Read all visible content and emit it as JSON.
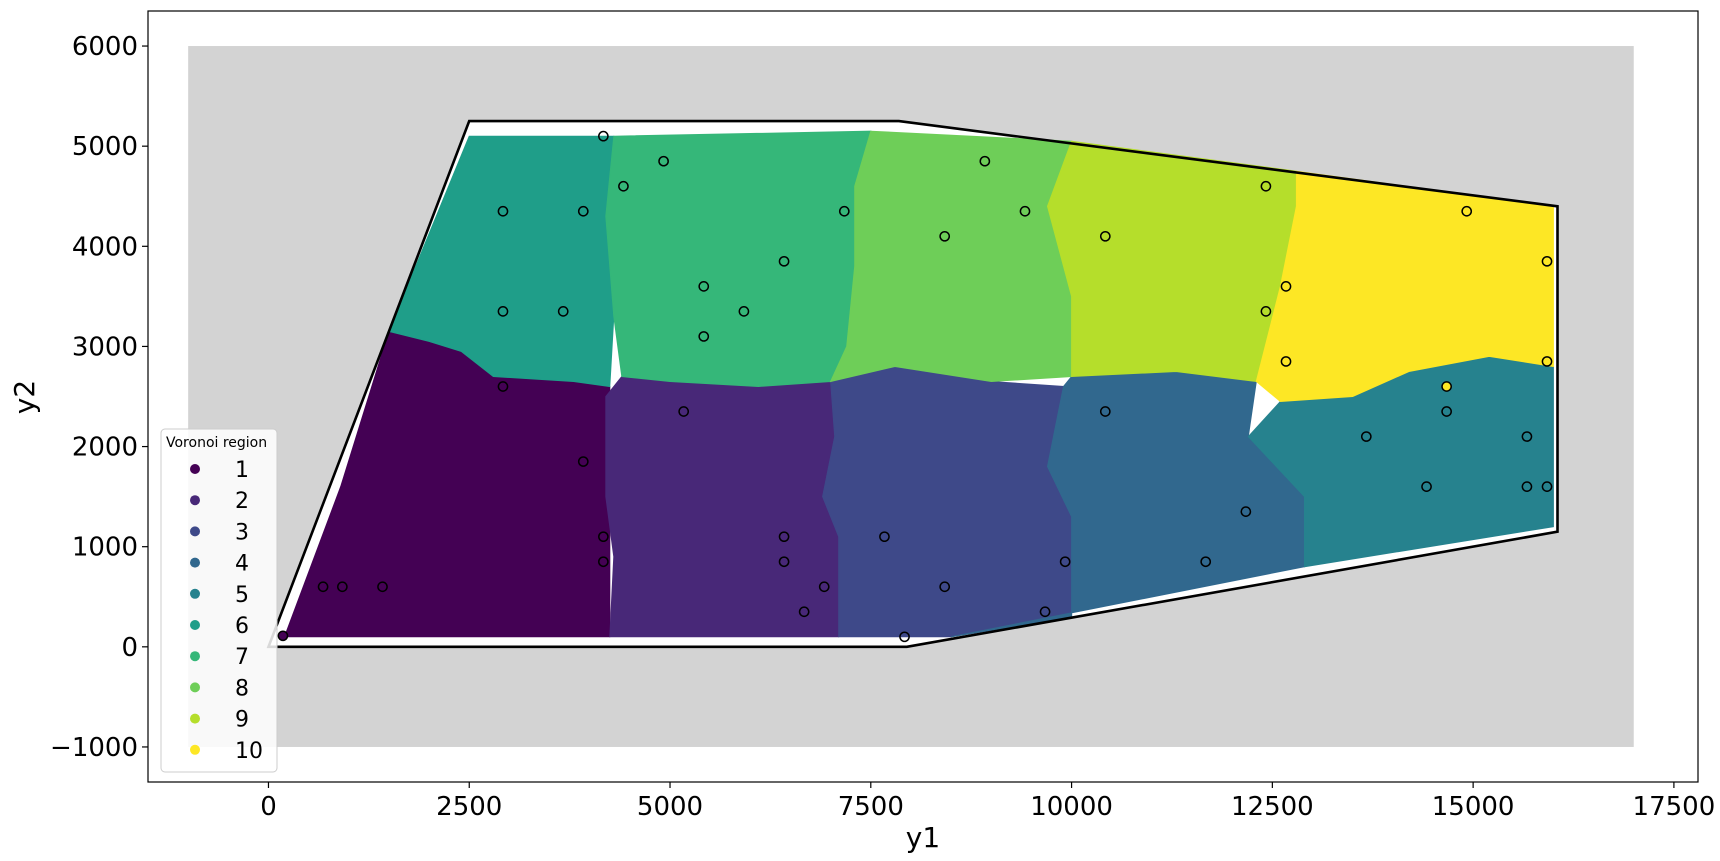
{
  "chart_data": {
    "type": "scatter",
    "xlabel": "y1",
    "ylabel": "y2",
    "xlim": [
      -1500,
      17800
    ],
    "ylim": [
      -1350,
      6350
    ],
    "x_ticks": [
      0,
      2500,
      5000,
      7500,
      10000,
      12500,
      15000,
      17500
    ],
    "x_tick_labels": [
      "0",
      "2500",
      "5000",
      "7500",
      "10000",
      "12500",
      "15000",
      "17500"
    ],
    "y_ticks": [
      -1000,
      0,
      1000,
      2000,
      3000,
      4000,
      5000,
      6000
    ],
    "y_tick_labels": [
      "−1000",
      "0",
      "1000",
      "2000",
      "3000",
      "4000",
      "5000",
      "6000"
    ],
    "grid": false,
    "background_rect": {
      "x": [
        -1000,
        17000
      ],
      "y": [
        -1000,
        6000
      ],
      "color": "#d3d3d3"
    },
    "boundary_polygon": [
      [
        0,
        0
      ],
      [
        2500,
        5250
      ],
      [
        7850,
        5250
      ],
      [
        16050,
        4400
      ],
      [
        16050,
        1150
      ],
      [
        7950,
        0
      ]
    ],
    "legend": {
      "title": "Voronoi region",
      "placement": "lower-left",
      "labels": [
        "1",
        "2",
        "3",
        "4",
        "5",
        "6",
        "7",
        "8",
        "9",
        "10"
      ],
      "colors": [
        "#440154",
        "#482878",
        "#3e4989",
        "#31688e",
        "#26828e",
        "#1f9e89",
        "#35b779",
        "#6ece58",
        "#b5de2b",
        "#fde725"
      ]
    },
    "regions": [
      {
        "label": "1",
        "color": "#440154",
        "polygon": [
          [
            200,
            100
          ],
          [
            350,
            100
          ],
          [
            4250,
            100
          ],
          [
            4250,
            2600
          ],
          [
            3800,
            2650
          ],
          [
            2800,
            2700
          ],
          [
            2400,
            2950
          ],
          [
            2000,
            3050
          ],
          [
            1500,
            3150
          ],
          [
            900,
            1600
          ]
        ]
      },
      {
        "label": "2",
        "color": "#482878",
        "polygon": [
          [
            4250,
            100
          ],
          [
            7100,
            100
          ],
          [
            7100,
            1100
          ],
          [
            6900,
            1500
          ],
          [
            7050,
            2100
          ],
          [
            7000,
            2650
          ],
          [
            6100,
            2600
          ],
          [
            5000,
            2650
          ],
          [
            4400,
            2700
          ],
          [
            4200,
            2500
          ],
          [
            4200,
            1500
          ],
          [
            4300,
            900
          ]
        ]
      },
      {
        "label": "3",
        "color": "#3e4989",
        "polygon": [
          [
            7100,
            100
          ],
          [
            8500,
            100
          ],
          [
            10000,
            300
          ],
          [
            10000,
            1300
          ],
          [
            9700,
            1800
          ],
          [
            9900,
            2600
          ],
          [
            9000,
            2650
          ],
          [
            7800,
            2800
          ],
          [
            7000,
            2650
          ],
          [
            7050,
            2100
          ],
          [
            6900,
            1500
          ],
          [
            7100,
            1100
          ]
        ]
      },
      {
        "label": "4",
        "color": "#31688e",
        "polygon": [
          [
            8500,
            100
          ],
          [
            12900,
            800
          ],
          [
            12900,
            1500
          ],
          [
            12200,
            2100
          ],
          [
            12300,
            2650
          ],
          [
            11300,
            2750
          ],
          [
            10000,
            2700
          ],
          [
            9900,
            2600
          ],
          [
            9700,
            1800
          ],
          [
            10000,
            1300
          ],
          [
            10000,
            300
          ]
        ]
      },
      {
        "label": "5",
        "color": "#26828e",
        "polygon": [
          [
            12900,
            800
          ],
          [
            16000,
            1200
          ],
          [
            16000,
            2800
          ],
          [
            15200,
            2900
          ],
          [
            14200,
            2750
          ],
          [
            13500,
            2500
          ],
          [
            12600,
            2450
          ],
          [
            12200,
            2100
          ],
          [
            12900,
            1500
          ]
        ]
      },
      {
        "label": "6",
        "color": "#1f9e89",
        "polygon": [
          [
            1500,
            3150
          ],
          [
            2000,
            3050
          ],
          [
            2400,
            2950
          ],
          [
            2800,
            2700
          ],
          [
            3800,
            2650
          ],
          [
            4250,
            2600
          ],
          [
            4300,
            3300
          ],
          [
            4200,
            4300
          ],
          [
            4300,
            5100
          ],
          [
            2500,
            5100
          ]
        ]
      },
      {
        "label": "7",
        "color": "#35b779",
        "polygon": [
          [
            4300,
            5100
          ],
          [
            7500,
            5150
          ],
          [
            7300,
            4600
          ],
          [
            7300,
            3800
          ],
          [
            7200,
            3000
          ],
          [
            7000,
            2650
          ],
          [
            6100,
            2600
          ],
          [
            5000,
            2650
          ],
          [
            4400,
            2700
          ],
          [
            4300,
            3300
          ],
          [
            4200,
            4300
          ]
        ]
      },
      {
        "label": "8",
        "color": "#6ece58",
        "polygon": [
          [
            7500,
            5150
          ],
          [
            10000,
            5050
          ],
          [
            9700,
            4400
          ],
          [
            10000,
            3500
          ],
          [
            10000,
            2700
          ],
          [
            9000,
            2650
          ],
          [
            7800,
            2800
          ],
          [
            7000,
            2650
          ],
          [
            7200,
            3000
          ],
          [
            7300,
            3800
          ],
          [
            7300,
            4600
          ]
        ]
      },
      {
        "label": "9",
        "color": "#b5de2b",
        "polygon": [
          [
            10000,
            5050
          ],
          [
            12800,
            4750
          ],
          [
            12800,
            4400
          ],
          [
            12600,
            3600
          ],
          [
            12300,
            2650
          ],
          [
            11300,
            2750
          ],
          [
            10000,
            2700
          ],
          [
            10000,
            3500
          ],
          [
            9700,
            4400
          ]
        ]
      },
      {
        "label": "10",
        "color": "#fde725",
        "polygon": [
          [
            12800,
            4750
          ],
          [
            16000,
            4400
          ],
          [
            16000,
            2800
          ],
          [
            15200,
            2900
          ],
          [
            14200,
            2750
          ],
          [
            13500,
            2500
          ],
          [
            12600,
            2450
          ],
          [
            12300,
            2650
          ],
          [
            12600,
            3600
          ],
          [
            12800,
            4400
          ]
        ]
      }
    ],
    "points": [
      {
        "x": 180,
        "y": 110,
        "fill": "#440154"
      },
      {
        "x": 680,
        "y": 600
      },
      {
        "x": 920,
        "y": 600
      },
      {
        "x": 1420,
        "y": 600
      },
      {
        "x": 2920,
        "y": 4350
      },
      {
        "x": 2920,
        "y": 3350
      },
      {
        "x": 2920,
        "y": 2600
      },
      {
        "x": 3670,
        "y": 3350
      },
      {
        "x": 3920,
        "y": 4350
      },
      {
        "x": 3920,
        "y": 1850
      },
      {
        "x": 4170,
        "y": 5100
      },
      {
        "x": 4170,
        "y": 1100
      },
      {
        "x": 4170,
        "y": 850
      },
      {
        "x": 4420,
        "y": 4600
      },
      {
        "x": 4920,
        "y": 4850
      },
      {
        "x": 5170,
        "y": 2350
      },
      {
        "x": 5420,
        "y": 3600
      },
      {
        "x": 5420,
        "y": 3100
      },
      {
        "x": 5920,
        "y": 3350
      },
      {
        "x": 6420,
        "y": 3850
      },
      {
        "x": 6420,
        "y": 1100
      },
      {
        "x": 6420,
        "y": 850
      },
      {
        "x": 6670,
        "y": 350
      },
      {
        "x": 6920,
        "y": 600
      },
      {
        "x": 7170,
        "y": 4350
      },
      {
        "x": 7670,
        "y": 1100
      },
      {
        "x": 7920,
        "y": 100
      },
      {
        "x": 8420,
        "y": 4100
      },
      {
        "x": 8420,
        "y": 600
      },
      {
        "x": 8920,
        "y": 4850
      },
      {
        "x": 9420,
        "y": 4350
      },
      {
        "x": 9670,
        "y": 350
      },
      {
        "x": 9920,
        "y": 850
      },
      {
        "x": 10420,
        "y": 4100
      },
      {
        "x": 10420,
        "y": 2350
      },
      {
        "x": 11670,
        "y": 850
      },
      {
        "x": 12170,
        "y": 1350
      },
      {
        "x": 12420,
        "y": 4600
      },
      {
        "x": 12420,
        "y": 3350
      },
      {
        "x": 12670,
        "y": 3600
      },
      {
        "x": 12670,
        "y": 2850
      },
      {
        "x": 13670,
        "y": 2100
      },
      {
        "x": 14420,
        "y": 1600
      },
      {
        "x": 14670,
        "y": 2600,
        "fill": "#fde725"
      },
      {
        "x": 14670,
        "y": 2350
      },
      {
        "x": 14920,
        "y": 4350
      },
      {
        "x": 15670,
        "y": 2100
      },
      {
        "x": 15670,
        "y": 1600
      },
      {
        "x": 15920,
        "y": 3850
      },
      {
        "x": 15920,
        "y": 2850
      },
      {
        "x": 15920,
        "y": 1600
      }
    ]
  }
}
